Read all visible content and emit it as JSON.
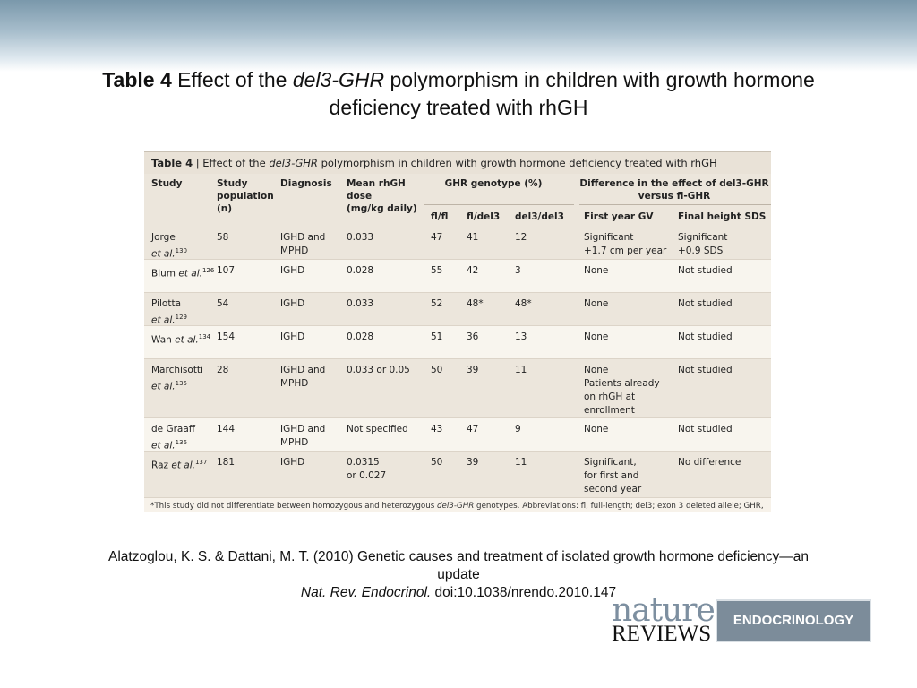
{
  "slide": {
    "title_bold": "Table 4",
    "title_pre": "Effect of the ",
    "title_italic": "del3-GHR",
    "title_post": " polymorphism in children with growth hormone deficiency treated with rhGH"
  },
  "table": {
    "caption_bold": "Table 4",
    "caption_sep": " | Effect of the ",
    "caption_italic": "del3-GHR",
    "caption_post": " polymorphism in children with growth hormone deficiency treated with rhGH",
    "headers": {
      "study": "Study",
      "population": "Study\npopulation\n(n)",
      "diagnosis": "Diagnosis",
      "dose": "Mean rhGH\ndose\n(mg/kg daily)",
      "genotype_group": "GHR genotype (%)",
      "diff_group_1": "Difference in the effect of del3-GHR",
      "diff_group_2": "versus fl-GHR",
      "flfl": "fl/fl",
      "fldel3": "fl/del3",
      "del3del3": "del3/del3",
      "first_year": "First year GV",
      "final_height": "Final height SDS"
    },
    "rows": [
      {
        "study": "Jorge",
        "etal": "et al.",
        "ref": "130",
        "n": "58",
        "diagnosis": "IGHD and\nMPHD",
        "dose": "0.033",
        "flfl": "47",
        "fldel3": "41",
        "del3del3": "12",
        "first_year": "Significant\n+1.7 cm per year",
        "final_height": "Significant\n+0.9 SDS"
      },
      {
        "study": "Blum",
        "etal": "et al.",
        "ref": "126",
        "n": "107",
        "diagnosis": "IGHD",
        "dose": "0.028",
        "flfl": "55",
        "fldel3": "42",
        "del3del3": "3",
        "first_year": "None",
        "final_height": "Not studied"
      },
      {
        "study": "Pilotta",
        "etal": "et al.",
        "ref": "129",
        "n": "54",
        "diagnosis": "IGHD",
        "dose": "0.033",
        "flfl": "52",
        "fldel3": "48*",
        "del3del3": "48*",
        "first_year": "None",
        "final_height": "Not studied"
      },
      {
        "study": "Wan",
        "etal": "et al.",
        "ref": "134",
        "n": "154",
        "diagnosis": "IGHD",
        "dose": "0.028",
        "flfl": "51",
        "fldel3": "36",
        "del3del3": "13",
        "first_year": "None",
        "final_height": "Not studied"
      },
      {
        "study": "Marchisotti",
        "etal": "et al.",
        "ref": "135",
        "n": "28",
        "diagnosis": "IGHD and\nMPHD",
        "dose": "0.033 or 0.05",
        "flfl": "50",
        "fldel3": "39",
        "del3del3": "11",
        "first_year": "None\nPatients already\non rhGH at\nenrollment",
        "final_height": "Not studied"
      },
      {
        "study": "de Graaff",
        "etal": "et al.",
        "ref": "136",
        "n": "144",
        "diagnosis": "IGHD and\nMPHD",
        "dose": "Not specified",
        "flfl": "43",
        "fldel3": "47",
        "del3del3": "9",
        "first_year": "None",
        "final_height": "Not studied"
      },
      {
        "study": "Raz",
        "etal": "et al.",
        "ref": "137",
        "n": "181",
        "diagnosis": "IGHD",
        "dose": "0.0315\nor 0.027",
        "flfl": "50",
        "fldel3": "39",
        "del3del3": "11",
        "first_year": "Significant,\nfor first and\nsecond year",
        "final_height": "No difference"
      }
    ],
    "footnote_pre": "*This study did not differentiate between homozygous and heterozygous ",
    "footnote_italic": "del3-GHR",
    "footnote_post": " genotypes. Abbreviations: fl, full-length; del3; exon 3 deleted allele; GHR, growth hormone receptor; GV, growth velocity; IGHD, isolated growth hormone deficiency; MPHD, multiple pituitary hormone deficiencies; rhGH, recombinant human growth hormone; SDS, SD score."
  },
  "citation": {
    "line1": "Alatzoglou, K. S. & Dattani, M. T. (2010) Genetic causes and treatment of isolated growth hormone deficiency—an update",
    "journal": "Nat. Rev. Endocrinol.",
    "doi": " doi:10.1038/nrendo.2010.147"
  },
  "logo": {
    "nature": "nature",
    "reviews": "REVIEWS",
    "endocrinology": "ENDOCRINOLOGY"
  }
}
